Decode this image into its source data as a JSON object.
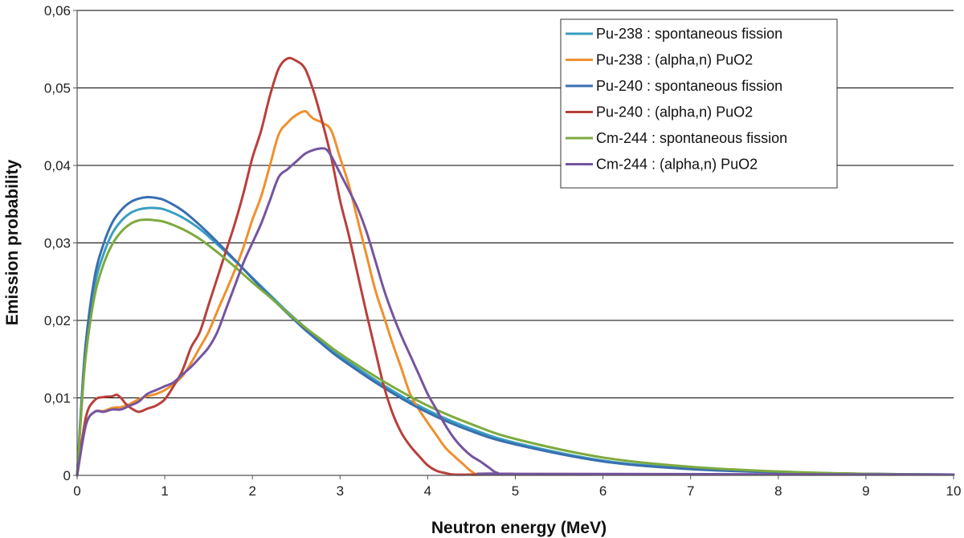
{
  "chart_data": {
    "type": "line",
    "xlabel": "Neutron energy (MeV)",
    "ylabel": "Emission probability",
    "xlim": [
      0,
      10
    ],
    "ylim": [
      0,
      0.06
    ],
    "x_ticks": [
      0,
      1,
      2,
      3,
      4,
      5,
      6,
      7,
      8,
      9,
      10
    ],
    "x_tick_labels": [
      "0",
      "1",
      "2",
      "3",
      "4",
      "5",
      "6",
      "7",
      "8",
      "9",
      "10"
    ],
    "y_ticks": [
      0,
      0.01,
      0.02,
      0.03,
      0.04,
      0.05,
      0.06
    ],
    "y_tick_labels": [
      "0",
      "0,01",
      "0,02",
      "0,03",
      "0,04",
      "0,05",
      "0,06"
    ],
    "grid": "horizontal",
    "legend_position": "top-right",
    "series": [
      {
        "name": "Pu-238 : spontaneous fission",
        "color": "#3a9fbf",
        "x": [
          0,
          0.05,
          0.1,
          0.2,
          0.3,
          0.4,
          0.5,
          0.6,
          0.7,
          0.8,
          0.9,
          1.0,
          1.2,
          1.4,
          1.6,
          1.8,
          2.0,
          2.2,
          2.4,
          2.6,
          2.8,
          3.0,
          3.5,
          4.0,
          4.5,
          5.0,
          6.0,
          7.0,
          8.0,
          9.0,
          10.0
        ],
        "values": [
          0,
          0.009,
          0.0165,
          0.0245,
          0.0285,
          0.0312,
          0.0328,
          0.0338,
          0.0343,
          0.0345,
          0.0345,
          0.0343,
          0.0333,
          0.0318,
          0.0298,
          0.0277,
          0.0255,
          0.0233,
          0.0211,
          0.0191,
          0.0172,
          0.0154,
          0.0116,
          0.0084,
          0.006,
          0.0042,
          0.0019,
          0.0009,
          0.0004,
          0.0002,
          0.0001
        ]
      },
      {
        "name": "Pu-238 : (alpha,n) PuO2",
        "color": "#f0902c",
        "x": [
          0,
          0.1,
          0.2,
          0.3,
          0.4,
          0.5,
          0.6,
          0.7,
          0.8,
          0.9,
          1.0,
          1.1,
          1.2,
          1.3,
          1.4,
          1.5,
          1.6,
          1.7,
          1.8,
          1.9,
          2.0,
          2.1,
          2.2,
          2.3,
          2.4,
          2.5,
          2.6,
          2.65,
          2.7,
          2.8,
          2.9,
          3.0,
          3.1,
          3.2,
          3.3,
          3.4,
          3.5,
          3.6,
          3.7,
          3.8,
          3.9,
          4.0,
          4.1,
          4.2,
          4.3,
          4.4,
          4.5,
          4.6,
          5.0,
          10.0
        ],
        "values": [
          0,
          0.0065,
          0.0082,
          0.0083,
          0.0087,
          0.0088,
          0.0092,
          0.0098,
          0.0102,
          0.0105,
          0.011,
          0.0118,
          0.0128,
          0.0145,
          0.0165,
          0.0185,
          0.0212,
          0.0238,
          0.0265,
          0.0295,
          0.033,
          0.036,
          0.04,
          0.044,
          0.0455,
          0.0465,
          0.047,
          0.0465,
          0.046,
          0.0455,
          0.0445,
          0.041,
          0.0375,
          0.033,
          0.0285,
          0.024,
          0.0205,
          0.017,
          0.0138,
          0.0105,
          0.0085,
          0.0068,
          0.0052,
          0.0036,
          0.0025,
          0.0015,
          0.0005,
          0.0001,
          0.0001,
          0.0001
        ]
      },
      {
        "name": "Pu-240 : spontaneous fission",
        "color": "#3a6fb0",
        "x": [
          0,
          0.05,
          0.1,
          0.2,
          0.3,
          0.4,
          0.5,
          0.6,
          0.7,
          0.8,
          0.9,
          1.0,
          1.2,
          1.4,
          1.6,
          1.8,
          2.0,
          2.2,
          2.4,
          2.6,
          2.8,
          3.0,
          3.5,
          4.0,
          4.5,
          5.0,
          6.0,
          7.0,
          8.0,
          9.0,
          10.0
        ],
        "values": [
          0,
          0.0095,
          0.0172,
          0.0256,
          0.0298,
          0.0326,
          0.0342,
          0.0352,
          0.0357,
          0.0359,
          0.0358,
          0.0355,
          0.0342,
          0.0323,
          0.0301,
          0.0278,
          0.0254,
          0.0231,
          0.0209,
          0.0188,
          0.0169,
          0.0151,
          0.0113,
          0.0081,
          0.0057,
          0.004,
          0.0018,
          0.0008,
          0.0004,
          0.0002,
          0.0001
        ]
      },
      {
        "name": "Pu-240 : (alpha,n)  PuO2",
        "color": "#b8403b",
        "x": [
          0,
          0.1,
          0.2,
          0.3,
          0.4,
          0.45,
          0.5,
          0.55,
          0.6,
          0.7,
          0.8,
          0.9,
          1.0,
          1.1,
          1.2,
          1.3,
          1.4,
          1.5,
          1.6,
          1.7,
          1.8,
          1.9,
          2.0,
          2.1,
          2.2,
          2.3,
          2.4,
          2.5,
          2.6,
          2.7,
          2.8,
          2.9,
          3.0,
          3.1,
          3.2,
          3.3,
          3.4,
          3.5,
          3.6,
          3.7,
          3.8,
          3.9,
          4.0,
          4.1,
          4.2,
          4.3,
          4.5,
          5.0,
          10.0
        ],
        "values": [
          0,
          0.0075,
          0.0097,
          0.0101,
          0.0102,
          0.0104,
          0.01,
          0.0093,
          0.0088,
          0.0082,
          0.0086,
          0.009,
          0.0098,
          0.0115,
          0.0135,
          0.0165,
          0.0185,
          0.022,
          0.0255,
          0.029,
          0.0325,
          0.0365,
          0.041,
          0.0445,
          0.049,
          0.0525,
          0.0538,
          0.0535,
          0.0525,
          0.0495,
          0.0455,
          0.041,
          0.0355,
          0.031,
          0.026,
          0.021,
          0.0162,
          0.0115,
          0.008,
          0.0055,
          0.0038,
          0.0025,
          0.0013,
          0.0006,
          0.0003,
          0.0001,
          0.0001,
          0.0001,
          0.0001
        ]
      },
      {
        "name": "Cm-244 : spontaneous fission",
        "color": "#7daa3f",
        "x": [
          0,
          0.05,
          0.1,
          0.2,
          0.3,
          0.4,
          0.5,
          0.6,
          0.7,
          0.8,
          0.9,
          1.0,
          1.2,
          1.4,
          1.6,
          1.8,
          2.0,
          2.2,
          2.4,
          2.6,
          2.8,
          3.0,
          3.5,
          4.0,
          4.5,
          5.0,
          6.0,
          7.0,
          8.0,
          9.0,
          10.0
        ],
        "values": [
          0,
          0.0085,
          0.0155,
          0.0232,
          0.0272,
          0.0298,
          0.0314,
          0.0324,
          0.0329,
          0.033,
          0.0329,
          0.0327,
          0.0318,
          0.0305,
          0.0288,
          0.0269,
          0.0249,
          0.023,
          0.021,
          0.0191,
          0.0174,
          0.0157,
          0.0121,
          0.009,
          0.0066,
          0.0047,
          0.0023,
          0.0011,
          0.0005,
          0.0002,
          0.0001
        ]
      },
      {
        "name": "Cm-244 : (alpha,n) PuO2",
        "color": "#7455a0",
        "x": [
          0,
          0.1,
          0.2,
          0.3,
          0.4,
          0.5,
          0.6,
          0.7,
          0.8,
          0.9,
          1.0,
          1.1,
          1.2,
          1.3,
          1.4,
          1.5,
          1.6,
          1.7,
          1.8,
          1.9,
          2.0,
          2.1,
          2.2,
          2.3,
          2.4,
          2.5,
          2.6,
          2.7,
          2.8,
          2.85,
          2.9,
          3.0,
          3.1,
          3.2,
          3.3,
          3.4,
          3.5,
          3.6,
          3.7,
          3.8,
          3.9,
          4.0,
          4.1,
          4.2,
          4.3,
          4.4,
          4.5,
          4.6,
          4.7,
          4.8,
          5.0,
          10.0
        ],
        "values": [
          0,
          0.0065,
          0.0082,
          0.0082,
          0.0085,
          0.0085,
          0.009,
          0.0095,
          0.0105,
          0.011,
          0.0115,
          0.012,
          0.013,
          0.014,
          0.0152,
          0.0165,
          0.0185,
          0.0215,
          0.0245,
          0.0275,
          0.03,
          0.0325,
          0.0355,
          0.0385,
          0.0395,
          0.0405,
          0.0415,
          0.042,
          0.0422,
          0.042,
          0.0412,
          0.039,
          0.0368,
          0.0345,
          0.0315,
          0.0278,
          0.024,
          0.0208,
          0.018,
          0.0155,
          0.013,
          0.0105,
          0.0085,
          0.0065,
          0.0048,
          0.0035,
          0.0025,
          0.0018,
          0.001,
          0.0003,
          0.0002,
          0.0001
        ]
      }
    ]
  }
}
